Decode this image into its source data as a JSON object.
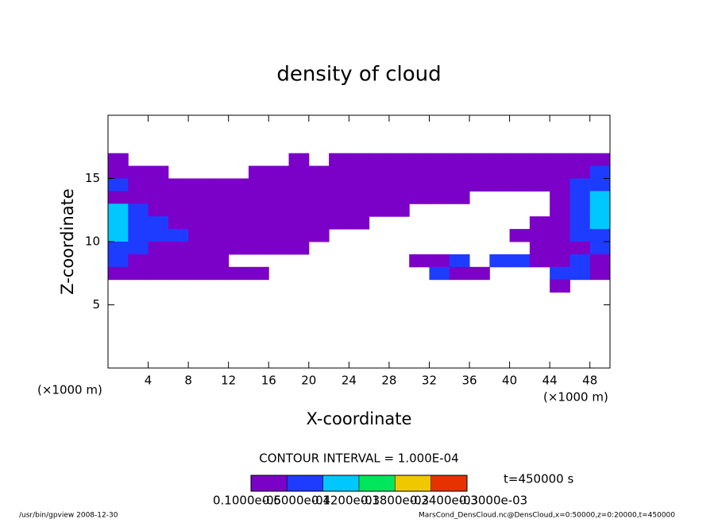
{
  "chart_data": {
    "type": "contour",
    "title": "density of cloud",
    "x_label": "X-coordinate",
    "y_label": "Z-coordinate",
    "x_unit_label": "(×1000 m)",
    "contour_interval": "CONTOUR INTERVAL = 1.000E-04",
    "time_label": "t=450000 s",
    "footer_left": "/usr/bin/gpview  2008-12-30",
    "footer_right": "MarsCond_DensCloud.nc@DensCloud,x=0:50000,z=0:20000,t=450000",
    "xlim": [
      0,
      50
    ],
    "ylim": [
      0,
      20
    ],
    "xticks": [
      4,
      8,
      12,
      16,
      20,
      24,
      28,
      32,
      36,
      40,
      44,
      48
    ],
    "yticks": [
      5,
      10,
      15
    ],
    "x_edges": [
      0,
      2,
      4,
      6,
      8,
      10,
      12,
      14,
      16,
      18,
      20,
      22,
      24,
      26,
      28,
      30,
      32,
      34,
      36,
      38,
      40,
      42,
      44,
      46,
      48,
      50
    ],
    "z_edges": [
      17,
      16,
      15,
      14,
      13,
      12,
      11,
      10,
      9,
      8,
      7,
      6
    ],
    "levels": [
      1e-06,
      6e-05,
      0.00012,
      0.00018,
      0.00024,
      0.0003
    ],
    "level_labels": [
      "0.1000e-05",
      "0.6000e-04",
      "0.1200e-03",
      "0.1800e-03",
      "0.2400e-03",
      "0.3000e-03"
    ],
    "colors": [
      "#7b00c8",
      "#1e3cff",
      "#00c8ff",
      "#00e65a",
      "#f0c800",
      "#e63200"
    ],
    "values": [
      [
        3e-05,
        null,
        null,
        null,
        null,
        null,
        null,
        null,
        null,
        3e-05,
        null,
        3e-05,
        3e-05,
        3e-05,
        3e-05,
        3e-05,
        3e-05,
        3e-05,
        3e-05,
        3e-05,
        3e-05,
        3e-05,
        3e-05,
        3e-05,
        3e-05
      ],
      [
        3e-05,
        3e-05,
        3e-05,
        null,
        null,
        null,
        null,
        3e-05,
        3e-05,
        3e-05,
        3e-05,
        3e-05,
        3e-05,
        3e-05,
        3e-05,
        3e-05,
        3e-05,
        3e-05,
        3e-05,
        3e-05,
        3e-05,
        3e-05,
        3e-05,
        3e-05,
        8e-05
      ],
      [
        8e-05,
        3e-05,
        3e-05,
        3e-05,
        3e-05,
        3e-05,
        3e-05,
        3e-05,
        3e-05,
        3e-05,
        3e-05,
        3e-05,
        3e-05,
        3e-05,
        3e-05,
        3e-05,
        3e-05,
        3e-05,
        3e-05,
        3e-05,
        3e-05,
        3e-05,
        3e-05,
        8e-05,
        8e-05
      ],
      [
        3e-05,
        3e-05,
        3e-05,
        3e-05,
        3e-05,
        3e-05,
        3e-05,
        3e-05,
        3e-05,
        3e-05,
        3e-05,
        3e-05,
        3e-05,
        3e-05,
        3e-05,
        3e-05,
        3e-05,
        3e-05,
        null,
        null,
        null,
        null,
        3e-05,
        8e-05,
        0.00015
      ],
      [
        0.00015,
        8e-05,
        3e-05,
        3e-05,
        3e-05,
        3e-05,
        3e-05,
        3e-05,
        3e-05,
        3e-05,
        3e-05,
        3e-05,
        3e-05,
        3e-05,
        3e-05,
        null,
        null,
        null,
        null,
        null,
        null,
        null,
        3e-05,
        8e-05,
        0.00015
      ],
      [
        0.00015,
        8e-05,
        8e-05,
        3e-05,
        3e-05,
        3e-05,
        3e-05,
        3e-05,
        3e-05,
        3e-05,
        3e-05,
        3e-05,
        3e-05,
        null,
        null,
        null,
        null,
        null,
        null,
        null,
        null,
        3e-05,
        3e-05,
        8e-05,
        0.00015
      ],
      [
        0.00015,
        8e-05,
        8e-05,
        8e-05,
        3e-05,
        3e-05,
        3e-05,
        3e-05,
        3e-05,
        3e-05,
        3e-05,
        null,
        null,
        null,
        null,
        null,
        null,
        null,
        null,
        null,
        3e-05,
        3e-05,
        3e-05,
        8e-05,
        8e-05
      ],
      [
        8e-05,
        8e-05,
        3e-05,
        3e-05,
        3e-05,
        3e-05,
        3e-05,
        3e-05,
        3e-05,
        3e-05,
        null,
        null,
        null,
        null,
        null,
        null,
        null,
        null,
        null,
        null,
        null,
        3e-05,
        3e-05,
        3e-05,
        8e-05
      ],
      [
        8e-05,
        3e-05,
        3e-05,
        3e-05,
        3e-05,
        3e-05,
        null,
        null,
        null,
        null,
        null,
        null,
        null,
        null,
        null,
        3e-05,
        3e-05,
        8e-05,
        null,
        8e-05,
        8e-05,
        3e-05,
        3e-05,
        8e-05,
        3e-05
      ],
      [
        3e-05,
        3e-05,
        3e-05,
        3e-05,
        3e-05,
        3e-05,
        3e-05,
        3e-05,
        null,
        null,
        null,
        null,
        null,
        null,
        null,
        null,
        8e-05,
        3e-05,
        3e-05,
        null,
        null,
        null,
        8e-05,
        8e-05,
        3e-05
      ],
      [
        null,
        null,
        null,
        null,
        null,
        null,
        null,
        null,
        null,
        null,
        null,
        null,
        null,
        null,
        null,
        null,
        null,
        null,
        null,
        null,
        null,
        null,
        3e-05,
        null,
        null
      ]
    ]
  }
}
